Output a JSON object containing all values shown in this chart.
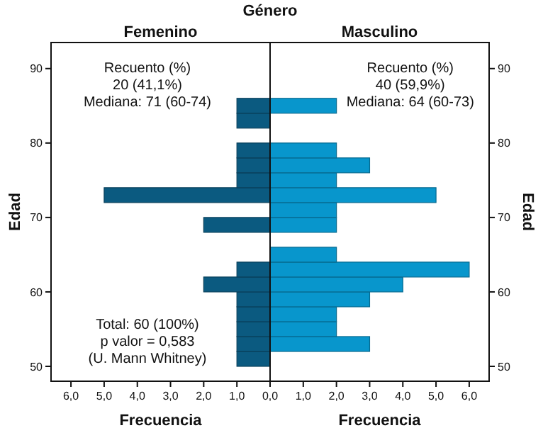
{
  "chart_data": [
    {
      "type": "histogram",
      "orientation": "horizontal",
      "title": "Femenino",
      "xlabel": "Frecuencia",
      "ylabel": "Edad",
      "color": "#0b5a80",
      "bins": [
        50,
        52,
        54,
        56,
        58,
        60,
        62,
        64,
        66,
        68,
        70,
        72,
        74,
        76,
        78,
        80,
        82,
        84,
        86
      ],
      "values": [
        1,
        1,
        1,
        1,
        1,
        2,
        1,
        0,
        0,
        2,
        0,
        5,
        1,
        1,
        1,
        0,
        1,
        1
      ],
      "xlim": [
        6.6,
        0
      ],
      "xticks": [
        {
          "value": 6,
          "label": "6,0"
        },
        {
          "value": 5,
          "label": "5,0"
        },
        {
          "value": 4,
          "label": "4,0"
        },
        {
          "value": 3,
          "label": "3,0"
        },
        {
          "value": 2,
          "label": "2,0"
        },
        {
          "value": 1,
          "label": "1,0"
        },
        {
          "value": 0,
          "label": "0,0"
        }
      ],
      "ylim": [
        48,
        93.5
      ],
      "yticks": [
        50,
        60,
        70,
        80,
        90
      ],
      "annotations": [
        "Género",
        "Recuento (%)\n20 (41,1%)\nMediana: 71 (60-74)",
        "Total: 60 (100%)\np valor = 0,583\n(U. Mann Whitney)"
      ]
    },
    {
      "type": "histogram",
      "orientation": "horizontal",
      "title": "Masculino",
      "xlabel": "Frecuencia",
      "ylabel": "Edad",
      "color": "#0896cc",
      "bins": [
        50,
        52,
        54,
        56,
        58,
        60,
        62,
        64,
        66,
        68,
        70,
        72,
        74,
        76,
        78,
        80,
        82,
        84,
        86
      ],
      "values": [
        0,
        3,
        2,
        2,
        3,
        4,
        6,
        2,
        0,
        2,
        2,
        5,
        2,
        3,
        2,
        0,
        0,
        2
      ],
      "xlim": [
        0,
        6.6
      ],
      "xticks": [
        {
          "value": 1,
          "label": "1,0"
        },
        {
          "value": 2,
          "label": "2,0"
        },
        {
          "value": 3,
          "label": "3,0"
        },
        {
          "value": 4,
          "label": "4,0"
        },
        {
          "value": 5,
          "label": "5,0"
        },
        {
          "value": 6,
          "label": "6,0"
        }
      ],
      "ylim": [
        48,
        93.5
      ],
      "yticks": [
        50,
        60,
        70,
        80,
        90
      ],
      "annotations": [
        "Recuento (%)\n40 (59,9%)\nMediana: 64 (60-73)"
      ]
    }
  ]
}
